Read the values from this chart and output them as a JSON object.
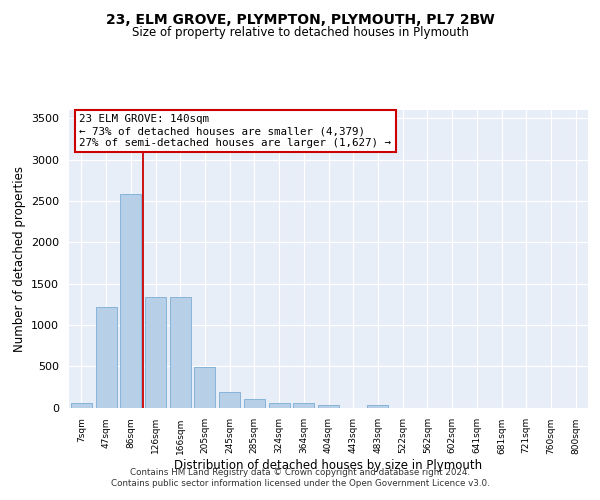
{
  "title": "23, ELM GROVE, PLYMPTON, PLYMOUTH, PL7 2BW",
  "subtitle": "Size of property relative to detached houses in Plymouth",
  "xlabel": "Distribution of detached houses by size in Plymouth",
  "ylabel": "Number of detached properties",
  "categories": [
    "7sqm",
    "47sqm",
    "86sqm",
    "126sqm",
    "166sqm",
    "205sqm",
    "245sqm",
    "285sqm",
    "324sqm",
    "364sqm",
    "404sqm",
    "443sqm",
    "483sqm",
    "522sqm",
    "562sqm",
    "602sqm",
    "641sqm",
    "681sqm",
    "721sqm",
    "760sqm",
    "800sqm"
  ],
  "values": [
    55,
    1220,
    2580,
    1340,
    1340,
    490,
    190,
    100,
    50,
    50,
    30,
    0,
    30,
    0,
    0,
    0,
    0,
    0,
    0,
    0,
    0
  ],
  "bar_color": "#b8cfe8",
  "bar_edge_color": "#7aacd4",
  "red_line_x": 2.5,
  "annotation_text": "23 ELM GROVE: 140sqm\n← 73% of detached houses are smaller (4,379)\n27% of semi-detached houses are larger (1,627) →",
  "ylim": [
    0,
    3600
  ],
  "yticks": [
    0,
    500,
    1000,
    1500,
    2000,
    2500,
    3000,
    3500
  ],
  "background_color": "#e8eef8",
  "grid_color": "#ffffff",
  "footer_line1": "Contains HM Land Registry data © Crown copyright and database right 2024.",
  "footer_line2": "Contains public sector information licensed under the Open Government Licence v3.0."
}
